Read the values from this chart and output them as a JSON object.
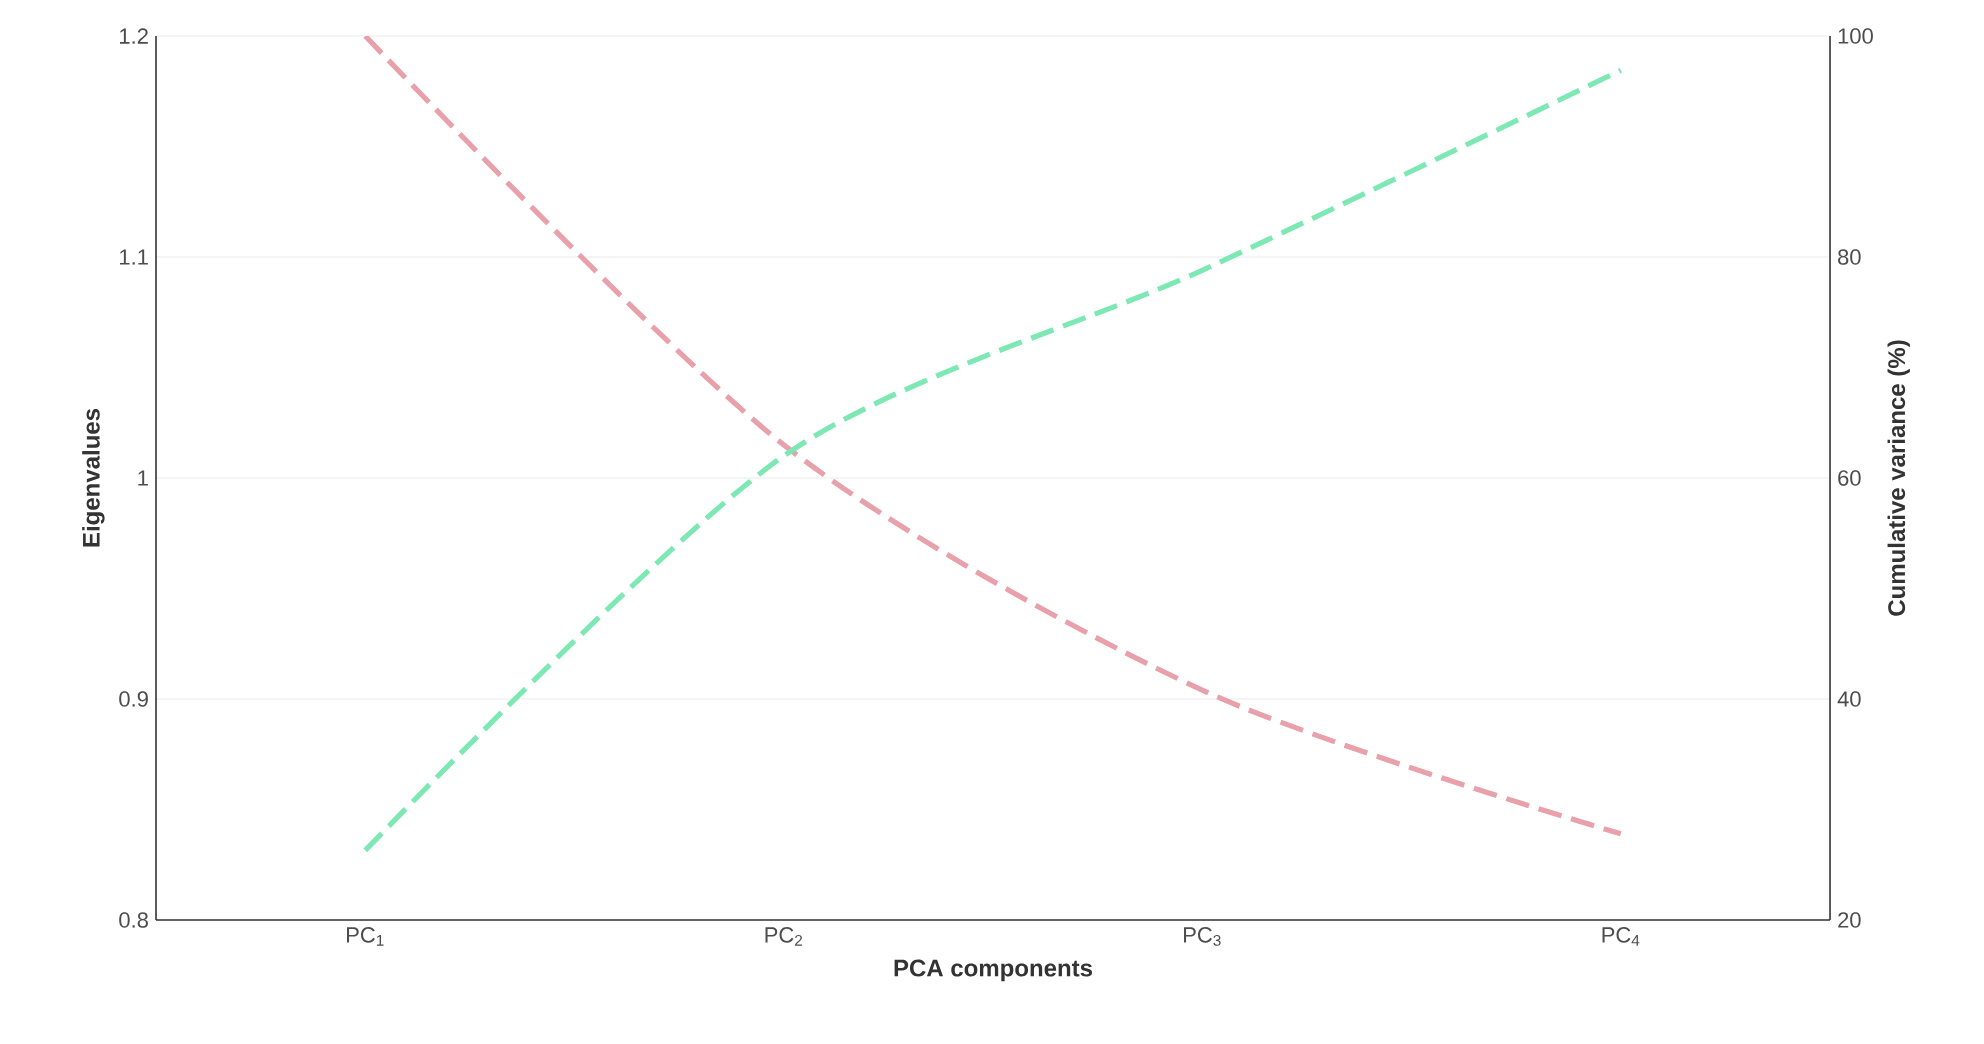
{
  "chart_data": {
    "type": "line",
    "xlabel": "PCA components",
    "ylabel": "Eigenvalues",
    "y2label": "Cumulative variance (%)",
    "categories": [
      "PC$_{1}$",
      "PC$_{2}$",
      "PC$_{3}$",
      "PC$_{4}$"
    ],
    "series": [
      {
        "color": "#e8a0ab",
        "values": [
          1.2,
          1.015,
          0.904,
          0.839
        ]
      },
      {
        "color": "#7de8b4",
        "values": [
          26.3,
          62,
          78.8,
          96.9
        ],
        "axis": "y2"
      }
    ],
    "ylim": [
      0.8,
      1.2
    ],
    "yticks": [
      0.8,
      0.9,
      1,
      1.1,
      1.2
    ],
    "y2lim": [
      20,
      100
    ],
    "y2ticks": [
      20,
      40,
      60,
      80,
      100
    ],
    "grid": "y",
    "line_style": "dashed"
  }
}
